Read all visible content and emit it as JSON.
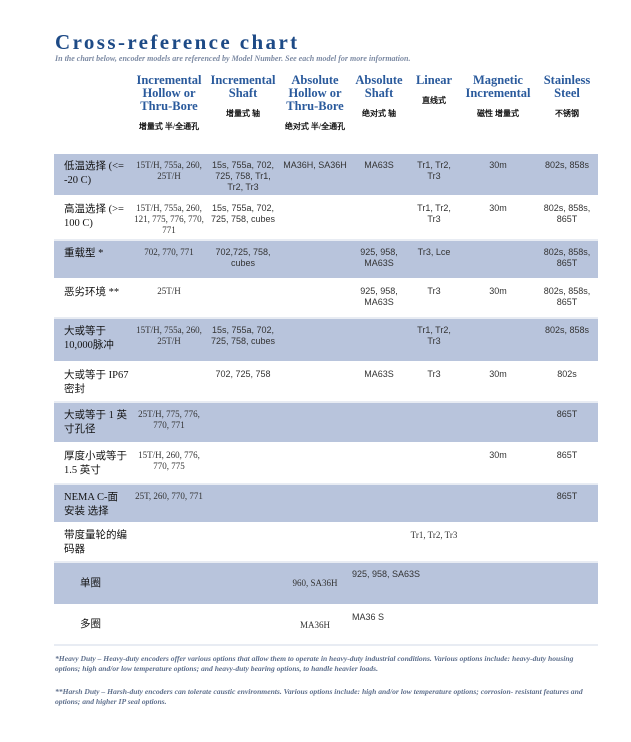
{
  "title": "Cross-reference chart",
  "subtitle": "In the chart below, encoder models are referenced by Model Number. See each model for more information.",
  "columns": [
    {
      "en": "Incremental Hollow or Thru-Bore",
      "cn": "增量式 半/全通孔"
    },
    {
      "en": "Incremental Shaft",
      "cn": "增量式 轴"
    },
    {
      "en": "Absolute Hollow or Thru-Bore",
      "cn": "绝对式 半/全通孔"
    },
    {
      "en": "Absolute Shaft",
      "cn": "绝对式 轴"
    },
    {
      "en": "Linear",
      "cn": "直线式"
    },
    {
      "en": "Magnetic Incremental",
      "cn": "磁性 增量式"
    },
    {
      "en": "Stainless Steel",
      "cn": "不锈钢"
    }
  ],
  "rows": [
    {
      "label": "低温选择 (<= -20 C)",
      "cells": [
        "15T/H, 755a, 260, 25T/H",
        "15s, 755a, 702, 725, 758, Tr1, Tr2, Tr3",
        "MA36H, SA36H",
        "MA63S",
        "Tr1, Tr2, Tr3",
        "30m",
        "802s, 858s"
      ]
    },
    {
      "label": "高温选择 (>= 100 C)",
      "cells": [
        "15T/H, 755a, 260, 121, 775, 776, 770, 771",
        "15s, 755a, 702, 725, 758, cubes",
        "",
        "",
        "Tr1, Tr2, Tr3",
        "30m",
        "802s, 858s, 865T"
      ]
    },
    {
      "label": "重载型 *",
      "cells": [
        "702, 770, 771",
        "702,725, 758, cubes",
        "",
        "925, 958, MA63S",
        "Tr3, Lce",
        "",
        "802s, 858s, 865T"
      ]
    },
    {
      "label": "恶劣环境 **",
      "cells": [
        "25T/H",
        "",
        "",
        "925, 958, MA63S",
        "Tr3",
        "30m",
        "802s, 858s, 865T"
      ]
    },
    {
      "label": "大或等于 10,000脉冲",
      "cells": [
        "15T/H, 755a, 260, 25T/H",
        "15s, 755a, 702, 725, 758, cubes",
        "",
        "",
        "Tr1, Tr2, Tr3",
        "",
        "802s, 858s"
      ]
    },
    {
      "label": "大或等于 IP67 密封",
      "cells": [
        "",
        "702, 725, 758",
        "",
        "MA63S",
        "Tr3",
        "30m",
        "802s"
      ]
    },
    {
      "label": "大或等于 1 英寸孔径",
      "cells": [
        "25T/H, 775, 776, 770, 771",
        "",
        "",
        "",
        "",
        "",
        "865T"
      ]
    },
    {
      "label": "厚度小或等于 1.5 英寸",
      "cells": [
        "15T/H, 260, 776, 770, 775",
        "",
        "",
        "",
        "",
        "30m",
        "865T"
      ]
    },
    {
      "label": "NEMA C-面 安装 选择",
      "cells": [
        "25T, 260, 770, 771",
        "",
        "",
        "",
        "",
        "",
        "865T"
      ]
    },
    {
      "label": "带度量轮的编码器",
      "cells": [
        "",
        "",
        "",
        "",
        "Tr1, Tr2, Tr3",
        "",
        ""
      ]
    },
    {
      "label": "单圈",
      "cells": [
        "",
        "",
        "960, SA36H",
        "925, 958, SA63S",
        "",
        "",
        ""
      ]
    },
    {
      "label": "多圈",
      "cells": [
        "",
        "",
        "MA36H",
        "MA36 S",
        "",
        "",
        ""
      ]
    }
  ],
  "notes": [
    "*Heavy Duty – Heavy-duty encoders offer various options that allow them to operate in heavy-duty industrial conditions. Various options include: heavy-duty housing options; high and/or low temperature options; and heavy-duty bearing options, to handle heavier loads.",
    "**Harsh Duty – Harsh-duty encoders can tolerate caustic environments. Various options include: high and/or low temperature options; corrosion- resistant features and options; and higher IP seal options."
  ],
  "colors": {
    "title": "#1d4a86",
    "header": "#2a5a9c",
    "shade": "#b8c4dc"
  }
}
